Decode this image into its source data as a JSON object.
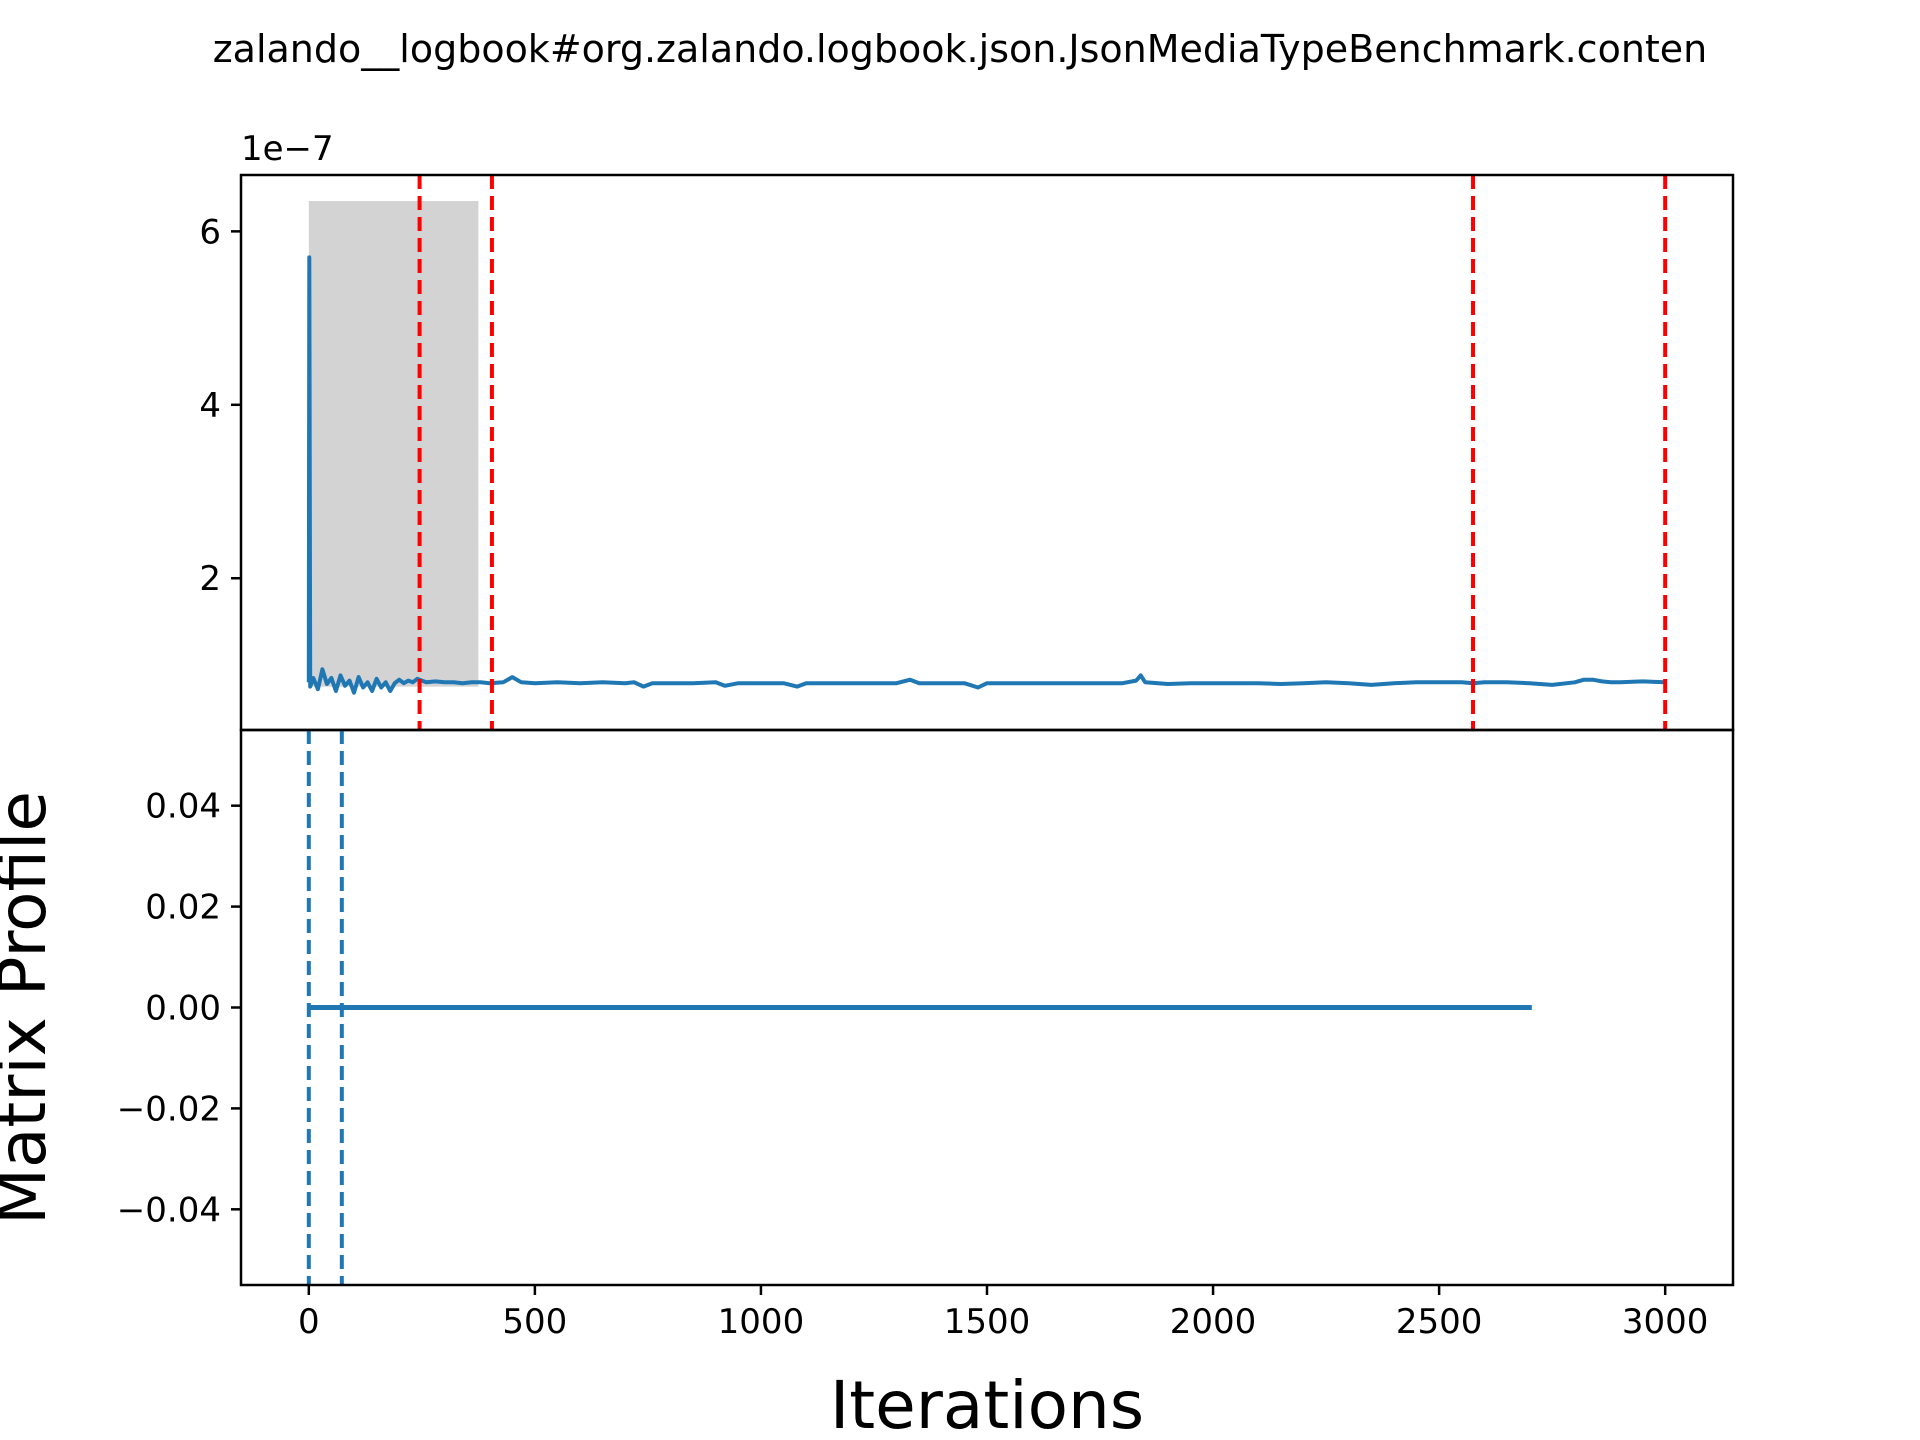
{
  "chart_data": {
    "type": "line",
    "title": "zalando__logbook#org.zalando.logbook.json.JsonMediaTypeBenchmark.conten",
    "xlabel": "Iterations",
    "xlim": [
      -150,
      3150
    ],
    "xticks": [
      0,
      500,
      1000,
      1500,
      2000,
      2500,
      3000
    ],
    "xtick_labels": [
      "0",
      "500",
      "1000",
      "1500",
      "2000",
      "2500",
      "3000"
    ],
    "grid": false,
    "colors": {
      "series": "#1f77b4",
      "changepoint": "#ff0000",
      "shade": "#d3d3d3"
    },
    "panels": [
      {
        "name": "timeseries",
        "ylabel": "",
        "offset_label": "1e−7",
        "ylim": [
          0.25,
          6.65
        ],
        "yticks": [
          2,
          4,
          6
        ],
        "ytick_labels": [
          "2",
          "4",
          "6"
        ],
        "shaded_region": {
          "x0": 0,
          "x1": 375,
          "y0": 0.75,
          "y1": 6.35
        },
        "changepoints": [
          245,
          405,
          2575,
          3000
        ],
        "series": {
          "x": [
            0,
            1,
            3,
            10,
            20,
            30,
            40,
            50,
            60,
            70,
            80,
            90,
            100,
            110,
            120,
            130,
            140,
            150,
            160,
            170,
            180,
            190,
            200,
            210,
            220,
            230,
            240,
            250,
            260,
            280,
            300,
            320,
            340,
            360,
            380,
            400,
            430,
            450,
            470,
            500,
            550,
            600,
            650,
            700,
            720,
            740,
            760,
            800,
            850,
            900,
            920,
            950,
            1000,
            1050,
            1080,
            1100,
            1150,
            1200,
            1250,
            1300,
            1330,
            1350,
            1400,
            1450,
            1480,
            1500,
            1550,
            1600,
            1650,
            1700,
            1750,
            1800,
            1830,
            1840,
            1850,
            1900,
            1950,
            2000,
            2050,
            2100,
            2150,
            2200,
            2250,
            2300,
            2350,
            2400,
            2450,
            2500,
            2550,
            2575,
            2600,
            2650,
            2700,
            2750,
            2800,
            2820,
            2840,
            2860,
            2880,
            2900,
            2950,
            3000
          ],
          "values": [
            0.8,
            5.7,
            0.75,
            0.85,
            0.72,
            0.95,
            0.78,
            0.85,
            0.7,
            0.88,
            0.76,
            0.82,
            0.68,
            0.86,
            0.74,
            0.8,
            0.7,
            0.84,
            0.74,
            0.8,
            0.7,
            0.79,
            0.83,
            0.79,
            0.82,
            0.8,
            0.84,
            0.82,
            0.8,
            0.81,
            0.8,
            0.8,
            0.79,
            0.8,
            0.8,
            0.79,
            0.8,
            0.86,
            0.8,
            0.79,
            0.8,
            0.79,
            0.8,
            0.79,
            0.8,
            0.75,
            0.79,
            0.79,
            0.79,
            0.8,
            0.76,
            0.79,
            0.79,
            0.79,
            0.75,
            0.79,
            0.79,
            0.79,
            0.79,
            0.79,
            0.83,
            0.79,
            0.79,
            0.79,
            0.74,
            0.79,
            0.79,
            0.79,
            0.79,
            0.79,
            0.79,
            0.79,
            0.82,
            0.88,
            0.8,
            0.78,
            0.79,
            0.79,
            0.79,
            0.79,
            0.78,
            0.79,
            0.8,
            0.79,
            0.77,
            0.79,
            0.8,
            0.8,
            0.8,
            0.79,
            0.8,
            0.8,
            0.79,
            0.77,
            0.8,
            0.83,
            0.83,
            0.81,
            0.8,
            0.8,
            0.81,
            0.8
          ]
        }
      },
      {
        "name": "matrix-profile",
        "ylabel": "Matrix Profile",
        "ylim": [
          -0.055,
          0.055
        ],
        "yticks": [
          -0.04,
          -0.02,
          0.0,
          0.02,
          0.04
        ],
        "ytick_labels": [
          "−0.04",
          "−0.02",
          "0.00",
          "0.02",
          "0.04"
        ],
        "vlines": [
          0,
          73
        ],
        "series": {
          "x": [
            0,
            2705
          ],
          "values": [
            0.0,
            0.0
          ]
        }
      }
    ]
  }
}
